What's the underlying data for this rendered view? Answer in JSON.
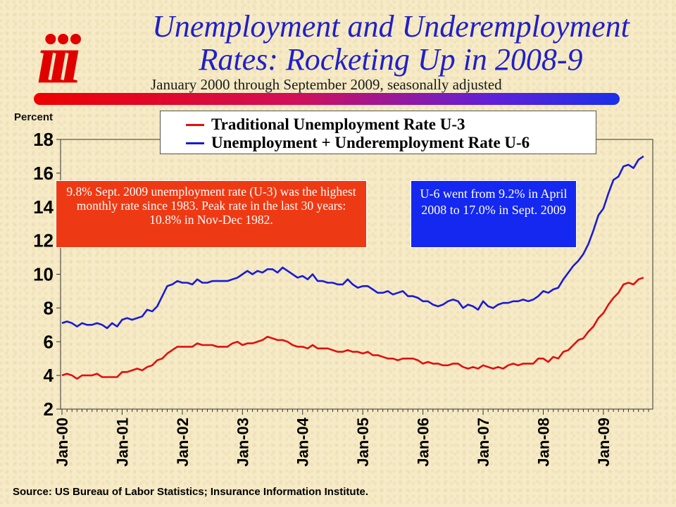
{
  "logo_text": "iii",
  "header": {
    "title_line1": "Unemployment and Underemployment",
    "title_line2": "Rates: Rocketing Up in 2008-9",
    "subtitle": "January 2000 through September 2009, seasonally adjusted"
  },
  "notes": {
    "red_box": "9.8% Sept. 2009 unemployment rate (U-3) was the highest monthly rate since 1983. Peak rate in the last 30 years: 10.8% in Nov-Dec 1982.",
    "blue_box": "U-6 went from 9.2% in April 2008 to 17.0% in Sept. 2009"
  },
  "source": "Source: US Bureau of Labor Statistics; Insurance Information Institute.",
  "colors": {
    "u3": "#e01010",
    "u6": "#1a1ad8",
    "title": "#2020c8",
    "logo": "#e10000"
  },
  "chart_data": {
    "type": "line",
    "title": "Unemployment and Underemployment Rates: Rocketing Up in 2008-9",
    "subtitle": "January 2000 through September 2009, seasonally adjusted",
    "ylabel": "Percent",
    "xlabel": "",
    "ylim": [
      2,
      18
    ],
    "yticks": [
      2,
      4,
      6,
      8,
      10,
      12,
      14,
      16,
      18
    ],
    "x_start": "Jan-00",
    "x_end": "Sep-09",
    "xtick_labels": [
      "Jan-00",
      "Jan-01",
      "Jan-02",
      "Jan-03",
      "Jan-04",
      "Jan-05",
      "Jan-06",
      "Jan-07",
      "Jan-08",
      "Jan-09"
    ],
    "legend_position": "top",
    "grid": false,
    "series": [
      {
        "name": "Traditional Unemployment Rate U-3",
        "color": "#e01010",
        "values": [
          4.0,
          4.1,
          4.0,
          3.8,
          4.0,
          4.0,
          4.0,
          4.1,
          3.9,
          3.9,
          3.9,
          3.9,
          4.2,
          4.2,
          4.3,
          4.4,
          4.3,
          4.5,
          4.6,
          4.9,
          5.0,
          5.3,
          5.5,
          5.7,
          5.7,
          5.7,
          5.7,
          5.9,
          5.8,
          5.8,
          5.8,
          5.7,
          5.7,
          5.7,
          5.9,
          6.0,
          5.8,
          5.9,
          5.9,
          6.0,
          6.1,
          6.3,
          6.2,
          6.1,
          6.1,
          6.0,
          5.8,
          5.7,
          5.7,
          5.6,
          5.8,
          5.6,
          5.6,
          5.6,
          5.5,
          5.4,
          5.4,
          5.5,
          5.4,
          5.4,
          5.3,
          5.4,
          5.2,
          5.2,
          5.1,
          5.0,
          5.0,
          4.9,
          5.0,
          5.0,
          5.0,
          4.9,
          4.7,
          4.8,
          4.7,
          4.7,
          4.6,
          4.6,
          4.7,
          4.7,
          4.5,
          4.4,
          4.5,
          4.4,
          4.6,
          4.5,
          4.4,
          4.5,
          4.4,
          4.6,
          4.7,
          4.6,
          4.7,
          4.7,
          4.7,
          5.0,
          5.0,
          4.8,
          5.1,
          5.0,
          5.4,
          5.5,
          5.8,
          6.1,
          6.2,
          6.6,
          6.9,
          7.4,
          7.7,
          8.2,
          8.6,
          8.9,
          9.4,
          9.5,
          9.4,
          9.7,
          9.8
        ]
      },
      {
        "name": "Unemployment + Underemployment Rate U-6",
        "color": "#1a1ad8",
        "values": [
          7.1,
          7.2,
          7.1,
          6.9,
          7.1,
          7.0,
          7.0,
          7.1,
          7.0,
          6.8,
          7.1,
          6.9,
          7.3,
          7.4,
          7.3,
          7.4,
          7.5,
          7.9,
          7.8,
          8.1,
          8.7,
          9.3,
          9.4,
          9.6,
          9.5,
          9.5,
          9.4,
          9.7,
          9.5,
          9.5,
          9.6,
          9.6,
          9.6,
          9.6,
          9.7,
          9.8,
          10.0,
          10.2,
          10.0,
          10.2,
          10.1,
          10.3,
          10.3,
          10.1,
          10.4,
          10.2,
          10.0,
          9.8,
          9.9,
          9.7,
          10.0,
          9.6,
          9.6,
          9.5,
          9.5,
          9.4,
          9.4,
          9.7,
          9.4,
          9.2,
          9.3,
          9.3,
          9.1,
          8.9,
          8.9,
          9.0,
          8.8,
          8.9,
          9.0,
          8.7,
          8.7,
          8.6,
          8.4,
          8.4,
          8.2,
          8.1,
          8.2,
          8.4,
          8.5,
          8.4,
          8.0,
          8.2,
          8.1,
          7.9,
          8.4,
          8.1,
          8.0,
          8.2,
          8.3,
          8.3,
          8.4,
          8.4,
          8.5,
          8.4,
          8.5,
          8.7,
          9.0,
          8.9,
          9.1,
          9.2,
          9.7,
          10.1,
          10.5,
          10.8,
          11.2,
          11.8,
          12.6,
          13.5,
          13.9,
          14.8,
          15.6,
          15.8,
          16.4,
          16.5,
          16.3,
          16.8,
          17.0
        ]
      }
    ]
  }
}
